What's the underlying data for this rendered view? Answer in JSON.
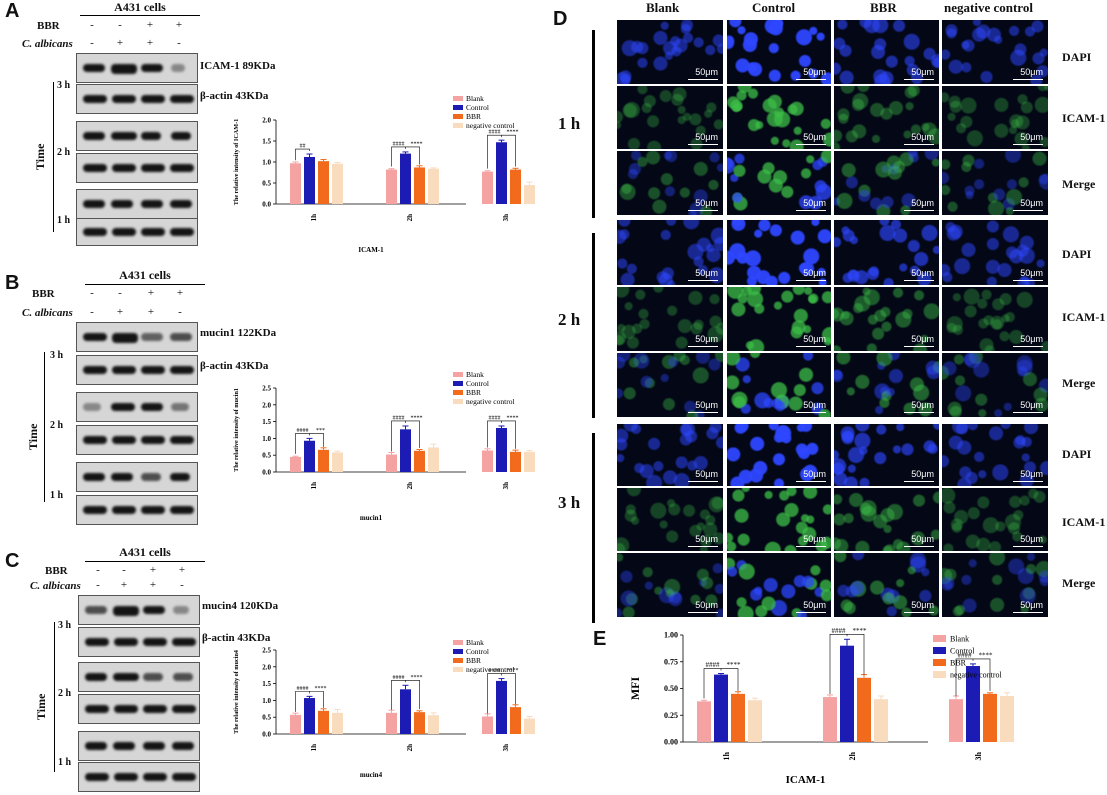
{
  "panels": {
    "A": {
      "letter": "A",
      "cells": "A431 cells",
      "bbr_label": "BBR",
      "calb_label": "C. albicans",
      "bbr_signs": [
        "-",
        "-",
        "+",
        "+"
      ],
      "calb_signs": [
        "-",
        "+",
        "+",
        "-"
      ],
      "target_label": "ICAM-1 89KDa",
      "actin_label": "β-actin 43KDa",
      "time_label": "Time",
      "times": [
        "3 h",
        "2 h",
        "1 h"
      ]
    },
    "B": {
      "letter": "B",
      "cells": "A431 cells",
      "bbr_label": "BBR",
      "calb_label": "C. albicans",
      "bbr_signs": [
        "-",
        "-",
        "+",
        "+"
      ],
      "calb_signs": [
        "-",
        "+",
        "+",
        "-"
      ],
      "target_label": "mucin1 122KDa",
      "actin_label": "β-actin 43KDa",
      "time_label": "Time",
      "times": [
        "3 h",
        "2 h",
        "1 h"
      ]
    },
    "C": {
      "letter": "C",
      "cells": "A431 cells",
      "bbr_label": "BBR",
      "calb_label": "C. albicans",
      "bbr_signs": [
        "-",
        "-",
        "+",
        "+"
      ],
      "calb_signs": [
        "-",
        "+",
        "+",
        "-"
      ],
      "target_label": "mucin4 120KDa",
      "actin_label": "β-actin 43KDa",
      "time_label": "Time",
      "times": [
        "3 h",
        "2 h",
        "1 h"
      ]
    },
    "D": {
      "letter": "D",
      "columns": [
        "Blank",
        "Control",
        "BBR",
        "negative control"
      ],
      "rows": [
        "DAPI",
        "ICAM-1",
        "Merge"
      ],
      "times": [
        "1 h",
        "2 h",
        "3 h"
      ],
      "scale": "50μm"
    },
    "E": {
      "letter": "E"
    }
  },
  "colors": {
    "Blank": "#f4a2a2",
    "Control": "#1c1cb4",
    "BBR": "#f26a1b",
    "negative control": "#f9dbbe",
    "dapi": "#2a3cff",
    "icam": "#3fb64a"
  },
  "chart_data": [
    {
      "type": "bar",
      "panel": "A",
      "categories": [
        "1h",
        "2h",
        "3h"
      ],
      "series": [
        {
          "name": "Blank",
          "values": [
            0.97,
            0.82,
            0.77
          ],
          "err": [
            0.03,
            0.02,
            0.02
          ]
        },
        {
          "name": "Control",
          "values": [
            1.12,
            1.2,
            1.47
          ],
          "err": [
            0.07,
            0.04,
            0.05
          ]
        },
        {
          "name": "BBR",
          "values": [
            1.02,
            0.87,
            0.82
          ],
          "err": [
            0.04,
            0.04,
            0.03
          ]
        },
        {
          "name": "negative control",
          "values": [
            0.96,
            0.84,
            0.45
          ],
          "err": [
            0.03,
            0.02,
            0.07
          ]
        }
      ],
      "xlabel": "ICAM-1",
      "ylabel": "The relative intensity of ICAM-1",
      "yticks": [
        "0.0",
        "0.5",
        "1.0",
        "1.5",
        "2.0"
      ],
      "ylim": [
        0,
        2.0
      ],
      "annotations": [
        {
          "category": "1h",
          "hash": "##",
          "star": ""
        },
        {
          "category": "2h",
          "hash": "####",
          "star": "****"
        },
        {
          "category": "3h",
          "hash": "####",
          "star": "****"
        }
      ],
      "legend": "top-right"
    },
    {
      "type": "bar",
      "panel": "B",
      "categories": [
        "1h",
        "2h",
        "3h"
      ],
      "series": [
        {
          "name": "Blank",
          "values": [
            0.45,
            0.52,
            0.64
          ],
          "err": [
            0.02,
            0.06,
            0.05
          ]
        },
        {
          "name": "Control",
          "values": [
            0.93,
            1.27,
            1.31
          ],
          "err": [
            0.07,
            0.1,
            0.06
          ]
        },
        {
          "name": "BBR",
          "values": [
            0.66,
            0.63,
            0.6
          ],
          "err": [
            0.06,
            0.04,
            0.05
          ]
        },
        {
          "name": "negative control",
          "values": [
            0.58,
            0.73,
            0.6
          ],
          "err": [
            0.04,
            0.1,
            0.04
          ]
        }
      ],
      "xlabel": "mucin1",
      "ylabel": "The relative intensity of mucin1",
      "yticks": [
        "0.0",
        "0.5",
        "1.0",
        "1.5",
        "2.0",
        "2.5"
      ],
      "ylim": [
        0,
        2.5
      ],
      "annotations": [
        {
          "category": "1h",
          "hash": "####",
          "star": "***"
        },
        {
          "category": "2h",
          "hash": "####",
          "star": "****"
        },
        {
          "category": "3h",
          "hash": "####",
          "star": "****"
        }
      ],
      "legend": "top-right"
    },
    {
      "type": "bar",
      "panel": "C",
      "categories": [
        "1h",
        "2h",
        "3h"
      ],
      "series": [
        {
          "name": "Blank",
          "values": [
            0.57,
            0.63,
            0.52
          ],
          "err": [
            0.05,
            0.08,
            0.08
          ]
        },
        {
          "name": "Control",
          "values": [
            1.07,
            1.33,
            1.58
          ],
          "err": [
            0.05,
            0.12,
            0.07
          ]
        },
        {
          "name": "BBR",
          "values": [
            0.69,
            0.65,
            0.8
          ],
          "err": [
            0.06,
            0.04,
            0.07
          ]
        },
        {
          "name": "negative control",
          "values": [
            0.63,
            0.56,
            0.46
          ],
          "err": [
            0.1,
            0.07,
            0.06
          ]
        }
      ],
      "xlabel": "mucin4",
      "ylabel": "The relative intensity of mucin4",
      "yticks": [
        "0.0",
        "0.5",
        "1.0",
        "1.5",
        "2.0",
        "2.5"
      ],
      "ylim": [
        0,
        2.5
      ],
      "annotations": [
        {
          "category": "1h",
          "hash": "####",
          "star": "****"
        },
        {
          "category": "2h",
          "hash": "####",
          "star": "****"
        },
        {
          "category": "3h",
          "hash": "####",
          "star": "****"
        }
      ],
      "legend": "top-right"
    },
    {
      "type": "bar",
      "panel": "E",
      "categories": [
        "1h",
        "2h",
        "3h"
      ],
      "series": [
        {
          "name": "Blank",
          "values": [
            0.38,
            0.42,
            0.4
          ],
          "err": [
            0.01,
            0.02,
            0.03
          ]
        },
        {
          "name": "Control",
          "values": [
            0.63,
            0.9,
            0.71
          ],
          "err": [
            0.01,
            0.06,
            0.02
          ]
        },
        {
          "name": "BBR",
          "values": [
            0.45,
            0.6,
            0.45
          ],
          "err": [
            0.02,
            0.03,
            0.01
          ]
        },
        {
          "name": "negative control",
          "values": [
            0.39,
            0.4,
            0.43
          ],
          "err": [
            0.02,
            0.03,
            0.03
          ]
        }
      ],
      "xlabel": "ICAM-1",
      "ylabel": "MFI",
      "yticks": [
        "0.00",
        "0.25",
        "0.50",
        "0.75",
        "1.00"
      ],
      "ylim": [
        0,
        1.0
      ],
      "annotations": [
        {
          "category": "1h",
          "hash": "####",
          "star": "****"
        },
        {
          "category": "2h",
          "hash": "####",
          "star": "****"
        },
        {
          "category": "3h",
          "hash": "####",
          "star": "****"
        }
      ],
      "legend": "right"
    }
  ]
}
